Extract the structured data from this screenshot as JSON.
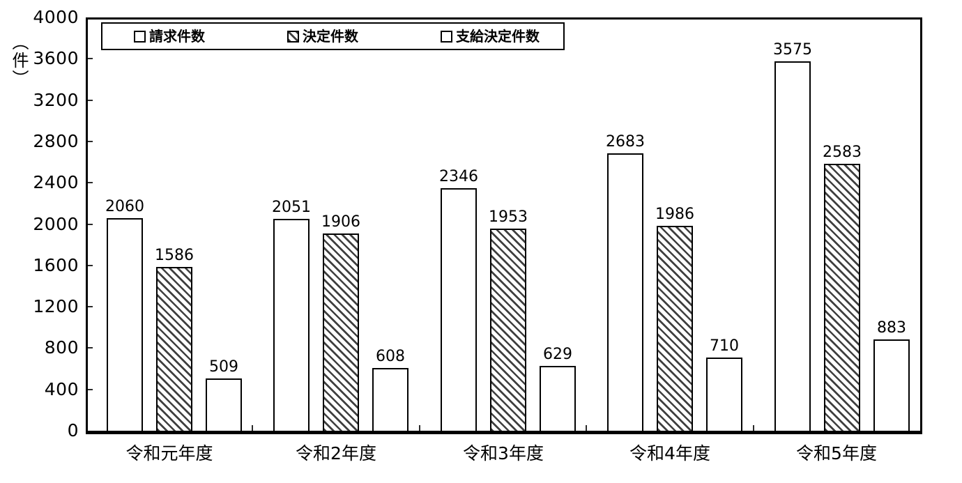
{
  "chart_data": {
    "type": "bar",
    "title": "",
    "y_axis_unit": "（件）",
    "categories": [
      "令和元年度",
      "令和2年度",
      "令和3年度",
      "令和4年度",
      "令和5年度"
    ],
    "series": [
      {
        "name": "請求件数",
        "pattern": "dots-on-white",
        "values": [
          2060,
          2051,
          2346,
          2683,
          3575
        ]
      },
      {
        "name": "決定件数",
        "pattern": "diagonal-hatch",
        "values": [
          1586,
          1906,
          1953,
          1986,
          2583
        ]
      },
      {
        "name": "支給決定件数",
        "pattern": "dots-on-black",
        "values": [
          509,
          608,
          629,
          710,
          883
        ]
      }
    ],
    "ylim": [
      0,
      4000
    ],
    "ytick_step": 400,
    "yticks": [
      0,
      400,
      800,
      1200,
      1600,
      2000,
      2400,
      2800,
      3200,
      3600,
      4000
    ],
    "data_labels_visible": true,
    "legend_position": "top-inside",
    "grid": false,
    "colors": {
      "axis": "#000000",
      "text": "#000000",
      "bar_border": "#000000",
      "hatch": "#3f3f3f",
      "dot_on_white": "#4a4a4a",
      "dot_on_black": "#e0e0e0",
      "background": "#ffffff"
    }
  }
}
